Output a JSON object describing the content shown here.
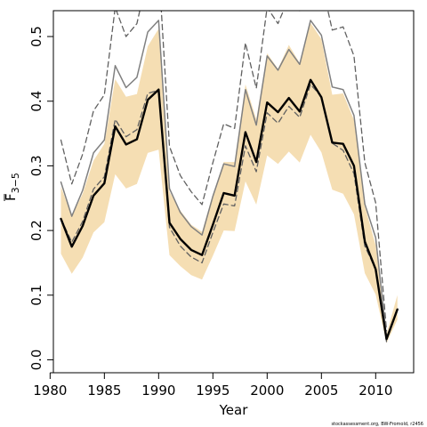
{
  "chart_data": {
    "type": "line",
    "xlabel": "Year",
    "ylabel_main": "F",
    "ylabel_sub": "3−5",
    "credit": "stockassessment.org, BW-Fromold, r2456",
    "xlim": [
      1980.3,
      2013.5
    ],
    "ylim": [
      -0.02,
      0.54
    ],
    "xticks": [
      1980,
      1985,
      1990,
      1995,
      2000,
      2005,
      2010
    ],
    "yticks": [
      0.0,
      0.1,
      0.2,
      0.3,
      0.4,
      0.5
    ],
    "ytick_labels": [
      "0.0",
      "0.1",
      "0.2",
      "0.3",
      "0.4",
      "0.5"
    ],
    "x": [
      1981,
      1982,
      1983,
      1984,
      1985,
      1986,
      1987,
      1988,
      1989,
      1990,
      1991,
      1992,
      1993,
      1994,
      1995,
      1996,
      1997,
      1998,
      1999,
      2000,
      2001,
      2002,
      2003,
      2004,
      2005,
      2006,
      2007,
      2008,
      2009,
      2010,
      2011,
      2012
    ],
    "series": [
      {
        "role": "estimate",
        "color": "#000000",
        "values": [
          0.218,
          0.175,
          0.207,
          0.254,
          0.273,
          0.361,
          0.333,
          0.341,
          0.402,
          0.418,
          0.212,
          0.187,
          0.17,
          0.162,
          0.209,
          0.258,
          0.254,
          0.352,
          0.306,
          0.398,
          0.383,
          0.405,
          0.384,
          0.433,
          0.406,
          0.336,
          0.334,
          0.3,
          0.183,
          0.14,
          0.032,
          0.078
        ]
      },
      {
        "role": "band",
        "color": "#f5deb3",
        "lower": [
          0.164,
          0.133,
          0.158,
          0.197,
          0.213,
          0.287,
          0.265,
          0.272,
          0.32,
          0.325,
          0.162,
          0.145,
          0.131,
          0.124,
          0.161,
          0.2,
          0.199,
          0.276,
          0.24,
          0.316,
          0.303,
          0.322,
          0.305,
          0.348,
          0.321,
          0.263,
          0.257,
          0.225,
          0.134,
          0.101,
          0.026,
          0.062
        ],
        "upper": [
          0.268,
          0.222,
          0.257,
          0.308,
          0.334,
          0.434,
          0.407,
          0.411,
          0.485,
          0.512,
          0.26,
          0.231,
          0.209,
          0.198,
          0.256,
          0.306,
          0.306,
          0.426,
          0.372,
          0.474,
          0.45,
          0.487,
          0.459,
          0.521,
          0.496,
          0.41,
          0.412,
          0.371,
          0.238,
          0.177,
          0.04,
          0.1
        ]
      },
      {
        "role": "alt-estimate",
        "color": "#808080",
        "values": [
          0.275,
          0.222,
          0.262,
          0.32,
          0.34,
          0.455,
          0.421,
          0.437,
          0.507,
          0.525,
          0.265,
          0.228,
          0.206,
          0.193,
          0.253,
          0.303,
          0.299,
          0.418,
          0.363,
          0.47,
          0.448,
          0.48,
          0.457,
          0.525,
          0.502,
          0.422,
          0.418,
          0.378,
          0.241,
          0.189,
          0.034,
          null
        ]
      },
      {
        "role": "alt-upper",
        "color": "#606060",
        "values": [
          0.34,
          0.272,
          0.318,
          0.385,
          0.41,
          0.545,
          0.5,
          0.52,
          0.595,
          0.61,
          0.33,
          0.285,
          0.26,
          0.24,
          0.305,
          0.365,
          0.358,
          0.49,
          0.42,
          0.545,
          0.52,
          0.56,
          0.54,
          0.6,
          0.585,
          0.51,
          0.515,
          0.47,
          0.305,
          0.243,
          0.045,
          null
        ]
      },
      {
        "role": "alt-lower",
        "color": "#606060",
        "values": [
          0.218,
          0.182,
          0.214,
          0.264,
          0.283,
          0.372,
          0.345,
          0.356,
          0.412,
          0.417,
          0.205,
          0.176,
          0.159,
          0.15,
          0.197,
          0.241,
          0.238,
          0.331,
          0.291,
          0.382,
          0.366,
          0.392,
          0.375,
          0.426,
          0.407,
          0.335,
          0.324,
          0.288,
          0.176,
          0.14,
          0.028,
          null
        ]
      }
    ]
  }
}
